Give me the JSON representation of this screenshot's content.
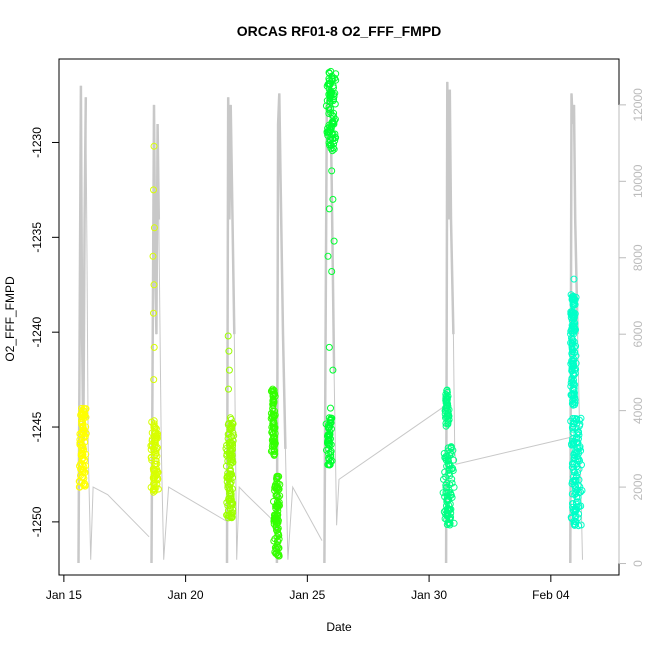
{
  "chart_data": {
    "type": "scatter",
    "title": "ORCAS RF01-8 O2_FFF_FMPD",
    "xlabel": "Date",
    "ylabel": "O2_FFF_FMPD",
    "x_ticks": [
      {
        "value": 15,
        "label": "Jan 15"
      },
      {
        "value": 20,
        "label": "Jan 20"
      },
      {
        "value": 25,
        "label": "Jan 25"
      },
      {
        "value": 30,
        "label": "Jan 30"
      },
      {
        "value": 35,
        "label": "Feb 04"
      }
    ],
    "y_ticks": [
      {
        "value": -1230,
        "label": "-1230"
      },
      {
        "value": -1235,
        "label": "-1235"
      },
      {
        "value": -1240,
        "label": "-1240"
      },
      {
        "value": -1245,
        "label": "-1245"
      },
      {
        "value": -1250,
        "label": "-1250"
      }
    ],
    "y2_ticks": [
      {
        "value": 0,
        "label": "0"
      },
      {
        "value": 2000,
        "label": "2000"
      },
      {
        "value": 4000,
        "label": "4000"
      },
      {
        "value": 6000,
        "label": "6000"
      },
      {
        "value": 8000,
        "label": "8000"
      },
      {
        "value": 10000,
        "label": "10000"
      },
      {
        "value": 12000,
        "label": "12000"
      }
    ],
    "xlim": [
      14.8,
      37.8
    ],
    "ylim": [
      -1252.8,
      -1225.6
    ],
    "y2lim": [
      -300,
      13200
    ],
    "grid": false,
    "legend": "none",
    "altitude_color": "#c8c8c8",
    "altitude_segments": [
      [
        [
          15.6,
          13
        ],
        [
          15.7,
          12500
        ],
        [
          15.75,
          6000
        ],
        [
          15.8,
          3000
        ],
        [
          15.85,
          9000
        ],
        [
          15.9,
          12200
        ],
        [
          15.95,
          8000
        ],
        [
          16.0,
          3000
        ],
        [
          16.1,
          100
        ],
        [
          16.2,
          2000
        ],
        [
          16.8,
          1800
        ],
        [
          18.5,
          700
        ]
      ],
      [
        [
          18.6,
          13
        ],
        [
          18.7,
          12000
        ],
        [
          18.75,
          8000
        ],
        [
          18.8,
          6000
        ],
        [
          18.85,
          11500
        ],
        [
          18.9,
          9000
        ],
        [
          19.0,
          3000
        ],
        [
          19.1,
          100
        ],
        [
          19.3,
          2000
        ],
        [
          21.7,
          1100
        ]
      ],
      [
        [
          21.7,
          13
        ],
        [
          21.75,
          12200
        ],
        [
          21.8,
          9000
        ],
        [
          21.85,
          12000
        ],
        [
          21.9,
          10000
        ],
        [
          22.0,
          6000
        ],
        [
          22.1,
          100
        ],
        [
          22.2,
          2000
        ],
        [
          22.5,
          1800
        ],
        [
          23.8,
          1000
        ]
      ],
      [
        [
          23.75,
          13
        ],
        [
          23.8,
          11500
        ],
        [
          23.85,
          12300
        ],
        [
          23.9,
          10000
        ],
        [
          24.0,
          6000
        ],
        [
          24.1,
          3000
        ],
        [
          24.2,
          100
        ],
        [
          24.4,
          2000
        ],
        [
          25.6,
          600
        ]
      ],
      [
        [
          25.7,
          13
        ],
        [
          25.8,
          12000
        ],
        [
          25.9,
          12500
        ],
        [
          25.95,
          12000
        ],
        [
          26.0,
          10000
        ],
        [
          26.1,
          5000
        ],
        [
          26.2,
          1000
        ],
        [
          26.3,
          2200
        ],
        [
          30.6,
          4100
        ]
      ],
      [
        [
          30.7,
          13
        ],
        [
          30.75,
          12600
        ],
        [
          30.8,
          9000
        ],
        [
          30.85,
          12400
        ],
        [
          30.9,
          9000
        ],
        [
          31.0,
          6000
        ],
        [
          31.05,
          3000
        ],
        [
          31.1,
          2600
        ],
        [
          35.8,
          3300
        ]
      ],
      [
        [
          35.8,
          13
        ],
        [
          35.85,
          12300
        ],
        [
          35.9,
          11500
        ],
        [
          35.95,
          12000
        ],
        [
          36.0,
          9000
        ],
        [
          36.1,
          6000
        ],
        [
          36.2,
          3000
        ],
        [
          36.3,
          100
        ]
      ]
    ],
    "series": [
      {
        "color": "#ffff00",
        "clusters": [
          [
            15.6,
            15.95,
            -1248.2,
            -1244.0
          ]
        ],
        "outliers": []
      },
      {
        "color": "#d8ff00",
        "clusters": [
          [
            18.55,
            18.9,
            -1248.5,
            -1244.5
          ]
        ],
        "outliers": [
          [
            18.7,
            -1230.2
          ],
          [
            18.68,
            -1232.5
          ],
          [
            18.72,
            -1234.5
          ],
          [
            18.66,
            -1236.0
          ],
          [
            18.7,
            -1237.5
          ],
          [
            18.68,
            -1239.0
          ],
          [
            18.71,
            -1240.8
          ],
          [
            18.69,
            -1242.5
          ]
        ]
      },
      {
        "color": "#9cff00",
        "clusters": [
          [
            21.65,
            22.0,
            -1249.8,
            -1244.5
          ]
        ],
        "outliers": [
          [
            21.75,
            -1240.2
          ],
          [
            21.78,
            -1241.0
          ],
          [
            21.8,
            -1242.0
          ],
          [
            21.76,
            -1243.0
          ]
        ]
      },
      {
        "color": "#34ff00",
        "clusters": [
          [
            23.6,
            23.9,
            -1251.8,
            -1247.5
          ],
          [
            23.5,
            23.7,
            -1246.5,
            -1243.0
          ]
        ],
        "outliers": []
      },
      {
        "color": "#00ff30",
        "clusters": [
          [
            25.75,
            26.2,
            -1230.5,
            -1226.2
          ],
          [
            25.75,
            26.05,
            -1247.0,
            -1244.5
          ]
        ],
        "outliers": [
          [
            26.0,
            -1231.5
          ],
          [
            26.05,
            -1233.0
          ],
          [
            25.9,
            -1233.5
          ],
          [
            26.1,
            -1235.2
          ],
          [
            25.85,
            -1236.0
          ],
          [
            26.0,
            -1236.8
          ],
          [
            25.9,
            -1240.8
          ],
          [
            26.05,
            -1242.0
          ],
          [
            25.95,
            -1244.0
          ]
        ]
      },
      {
        "color": "#00ff84",
        "clusters": [
          [
            30.55,
            31.05,
            -1250.2,
            -1246.0
          ],
          [
            30.65,
            30.85,
            -1245.0,
            -1243.0
          ]
        ],
        "outliers": []
      },
      {
        "color": "#00ffc8",
        "clusters": [
          [
            35.75,
            36.3,
            -1250.2,
            -1244.5
          ],
          [
            35.8,
            36.05,
            -1244.0,
            -1238.0
          ]
        ],
        "outliers": [
          [
            35.95,
            -1237.2
          ],
          [
            35.9,
            -1238.2
          ]
        ]
      }
    ]
  }
}
